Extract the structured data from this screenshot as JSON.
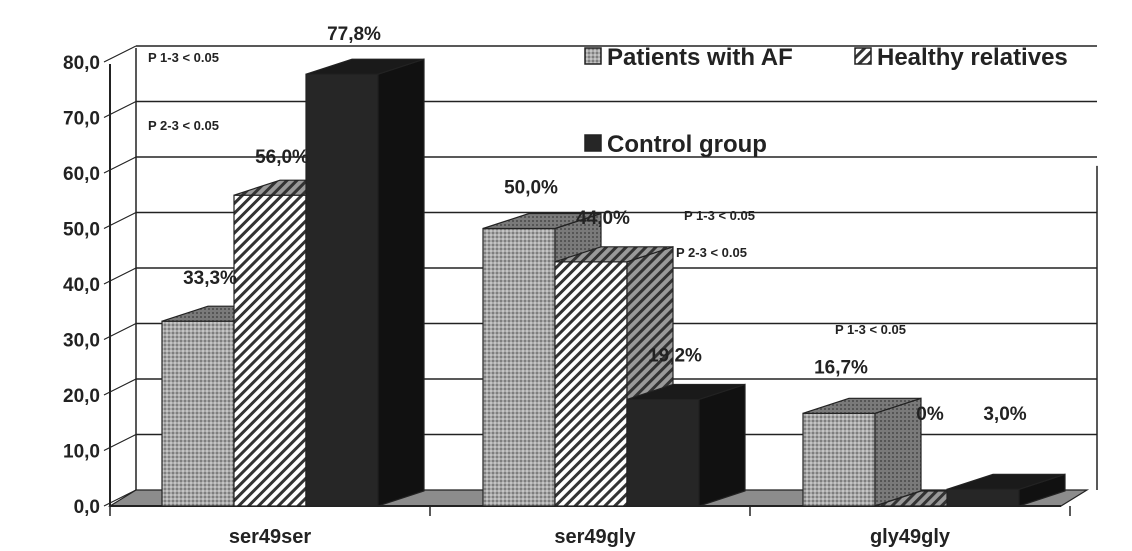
{
  "chart_data": {
    "type": "bar",
    "categories": [
      "ser49ser",
      "ser49gly",
      "gly49gly"
    ],
    "series": [
      {
        "name": "Patients with AF",
        "values": [
          33.3,
          50.0,
          16.7
        ],
        "labels": [
          "33,3%",
          "50,0%",
          "16,7%"
        ],
        "color": "#a3a3a3",
        "pattern": "dots"
      },
      {
        "name": "Healthy relatives",
        "values": [
          56.0,
          44.0,
          0.0
        ],
        "labels": [
          "56,0%",
          "44,0%",
          "0%"
        ],
        "color": "#ffffff",
        "pattern": "hatch"
      },
      {
        "name": "Control group",
        "values": [
          77.8,
          19.2,
          3.0
        ],
        "labels": [
          "77,8%",
          "19,2%",
          "3,0%"
        ],
        "color": "#262626",
        "pattern": "solid"
      }
    ],
    "yticks": [
      "0,0",
      "10,0",
      "20,0",
      "30,0",
      "40,0",
      "50,0",
      "60,0",
      "70,0",
      "80,0"
    ],
    "ylim": [
      0,
      80
    ],
    "grid": true,
    "legend_position": "top-right",
    "annotations": [
      {
        "category": "ser49ser",
        "lines": [
          "P 1-3 < 0.05",
          "P 2-3 < 0.05"
        ]
      },
      {
        "category": "ser49gly",
        "lines": [
          "P 1-3 < 0.05",
          "P 2-3 < 0.05"
        ]
      },
      {
        "category": "gly49gly",
        "lines": [
          "P 1-3 < 0.05"
        ]
      }
    ]
  }
}
